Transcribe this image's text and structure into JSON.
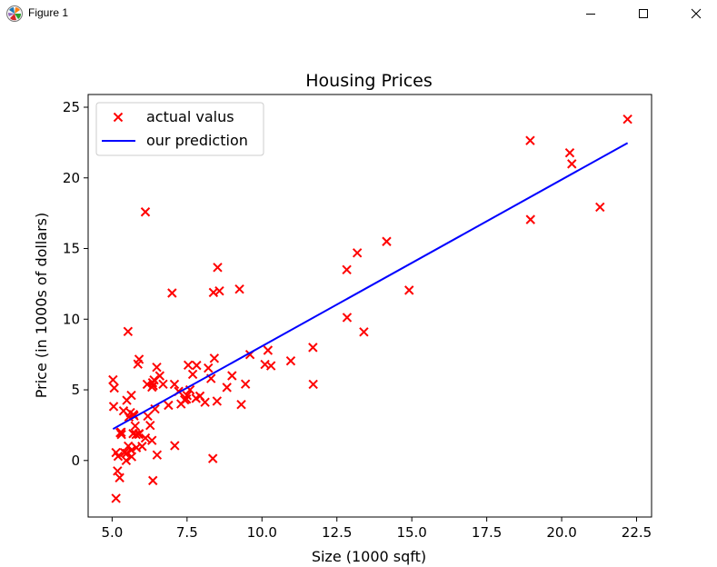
{
  "window": {
    "title": "Figure 1",
    "icons": {
      "app": "matplotlib-icon",
      "minimize": "minimize-icon",
      "maximize": "maximize-icon",
      "close": "close-icon"
    }
  },
  "chart_data": {
    "type": "scatter",
    "title": "Housing Prices",
    "xlabel": "Size (1000 sqft)",
    "ylabel": "Price (in 1000s of dollars)",
    "xlim": [
      4.2,
      23.0
    ],
    "ylim": [
      -4.0,
      25.9
    ],
    "xticks": [
      5.0,
      7.5,
      10.0,
      12.5,
      15.0,
      17.5,
      20.0,
      22.5
    ],
    "xtick_labels": [
      "5.0",
      "7.5",
      "10.0",
      "12.5",
      "15.0",
      "17.5",
      "20.0",
      "22.5"
    ],
    "yticks": [
      0,
      5,
      10,
      15,
      20,
      25
    ],
    "ytick_labels": [
      "0",
      "5",
      "10",
      "15",
      "20",
      "25"
    ],
    "grid": false,
    "legend_position": "top-left",
    "series": [
      {
        "name": "actual valus",
        "kind": "scatter",
        "marker": "x",
        "color": "#ff0000",
        "points": [
          [
            6.11,
            17.59
          ],
          [
            5.53,
            9.13
          ],
          [
            8.52,
            13.66
          ],
          [
            7.0,
            11.85
          ],
          [
            5.86,
            6.82
          ],
          [
            8.38,
            11.89
          ],
          [
            7.48,
            4.35
          ],
          [
            8.58,
            12.0
          ],
          [
            6.49,
            6.6
          ],
          [
            5.05,
            3.82
          ],
          [
            5.71,
            3.25
          ],
          [
            14.16,
            15.5
          ],
          [
            5.73,
            3.16
          ],
          [
            8.41,
            7.23
          ],
          [
            5.64,
            0.72
          ],
          [
            5.38,
            3.51
          ],
          [
            6.37,
            5.3
          ],
          [
            5.13,
            0.56
          ],
          [
            6.43,
            3.65
          ],
          [
            7.08,
            5.39
          ],
          [
            6.19,
            3.14
          ],
          [
            20.27,
            21.77
          ],
          [
            5.49,
            4.26
          ],
          [
            6.33,
            5.19
          ],
          [
            5.56,
            3.08
          ],
          [
            18.95,
            22.64
          ],
          [
            12.83,
            13.5
          ],
          [
            10.96,
            7.05
          ],
          [
            13.18,
            14.69
          ],
          [
            22.2,
            24.15
          ],
          [
            5.25,
            -1.22
          ],
          [
            6.59,
            5.99
          ],
          [
            9.25,
            12.13
          ],
          [
            5.89,
            1.85
          ],
          [
            8.21,
            6.54
          ],
          [
            7.93,
            4.56
          ],
          [
            8.1,
            4.12
          ],
          [
            5.61,
            3.39
          ],
          [
            12.84,
            10.12
          ],
          [
            6.35,
            5.5
          ],
          [
            5.41,
            0.56
          ],
          [
            6.88,
            3.91
          ],
          [
            11.71,
            5.39
          ],
          [
            5.77,
            2.44
          ],
          [
            7.82,
            6.73
          ],
          [
            7.09,
            1.05
          ],
          [
            5.07,
            5.13
          ],
          [
            5.8,
            1.84
          ],
          [
            11.7,
            8.0
          ],
          [
            5.54,
            1.02
          ],
          [
            7.54,
            6.75
          ],
          [
            5.31,
            1.84
          ],
          [
            7.42,
            4.29
          ],
          [
            7.6,
            5.0
          ],
          [
            6.33,
            1.42
          ],
          [
            6.36,
            -1.42
          ],
          [
            6.27,
            2.48
          ],
          [
            5.64,
            4.61
          ],
          [
            9.31,
            3.96
          ],
          [
            9.45,
            5.41
          ],
          [
            8.83,
            5.17
          ],
          [
            5.18,
            -0.74
          ],
          [
            21.28,
            17.93
          ],
          [
            14.91,
            12.05
          ],
          [
            18.96,
            17.05
          ],
          [
            7.22,
            4.89
          ],
          [
            5.3,
            1.99
          ],
          [
            6.17,
            5.39
          ],
          [
            5.03,
            5.71
          ],
          [
            5.27,
            1.97
          ],
          [
            5.3,
            2.0
          ],
          [
            5.13,
            -2.68
          ],
          [
            5.47,
            0.0
          ],
          [
            5.48,
            0.5
          ],
          [
            6.5,
            0.39
          ],
          [
            8.36,
            0.14
          ],
          [
            7.69,
            6.1
          ],
          [
            5.81,
            0.91
          ],
          [
            5.65,
            0.27
          ],
          [
            5.9,
            7.16
          ],
          [
            6.11,
            1.59
          ],
          [
            9.0,
            6.0
          ],
          [
            9.6,
            7.5
          ],
          [
            10.2,
            7.8
          ],
          [
            10.1,
            6.8
          ],
          [
            10.3,
            6.7
          ],
          [
            8.3,
            5.8
          ],
          [
            13.4,
            9.1
          ],
          [
            20.34,
            20.99
          ],
          [
            7.8,
            4.4
          ],
          [
            7.3,
            4.0
          ],
          [
            7.5,
            4.6
          ],
          [
            8.5,
            4.2
          ],
          [
            6.0,
            1.0
          ],
          [
            5.9,
            1.9
          ],
          [
            6.7,
            5.4
          ],
          [
            5.7,
            1.9
          ],
          [
            5.2,
            0.3
          ],
          [
            6.4,
            5.7
          ]
        ]
      },
      {
        "name": "our prediction",
        "kind": "line",
        "color": "#0000ff",
        "points": [
          [
            5.03,
            2.23
          ],
          [
            22.2,
            22.47
          ]
        ]
      }
    ]
  }
}
